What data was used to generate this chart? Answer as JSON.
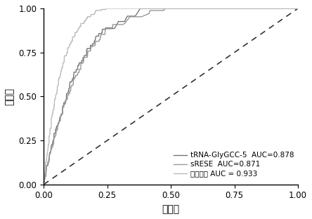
{
  "title": "",
  "xlabel": "特异性",
  "ylabel": "敏感性",
  "xlim": [
    0.0,
    1.0
  ],
  "ylim": [
    0.0,
    1.0
  ],
  "xticks": [
    0.0,
    0.25,
    0.5,
    0.75,
    1.0
  ],
  "yticks": [
    0.0,
    0.25,
    0.5,
    0.75,
    1.0
  ],
  "curves": [
    {
      "label": "tRNA-GlyGCC-5  AUC=0.878",
      "color": "#777777",
      "linewidth": 1.0,
      "auc": 0.878,
      "seed": 10,
      "alpha": 1.0
    },
    {
      "label": "sRESE  AUC=0.871",
      "color": "#999999",
      "linewidth": 1.0,
      "auc": 0.871,
      "seed": 20,
      "alpha": 1.0
    },
    {
      "label": "两个联合 AUC = 0.933",
      "color": "#bbbbbb",
      "linewidth": 1.0,
      "auc": 0.933,
      "seed": 30,
      "alpha": 1.0
    }
  ],
  "diagonal_color": "#333333",
  "diagonal_linewidth": 1.2,
  "background_color": "#ffffff",
  "legend_fontsize": 7.5,
  "axis_fontsize": 10,
  "tick_fontsize": 8.5
}
